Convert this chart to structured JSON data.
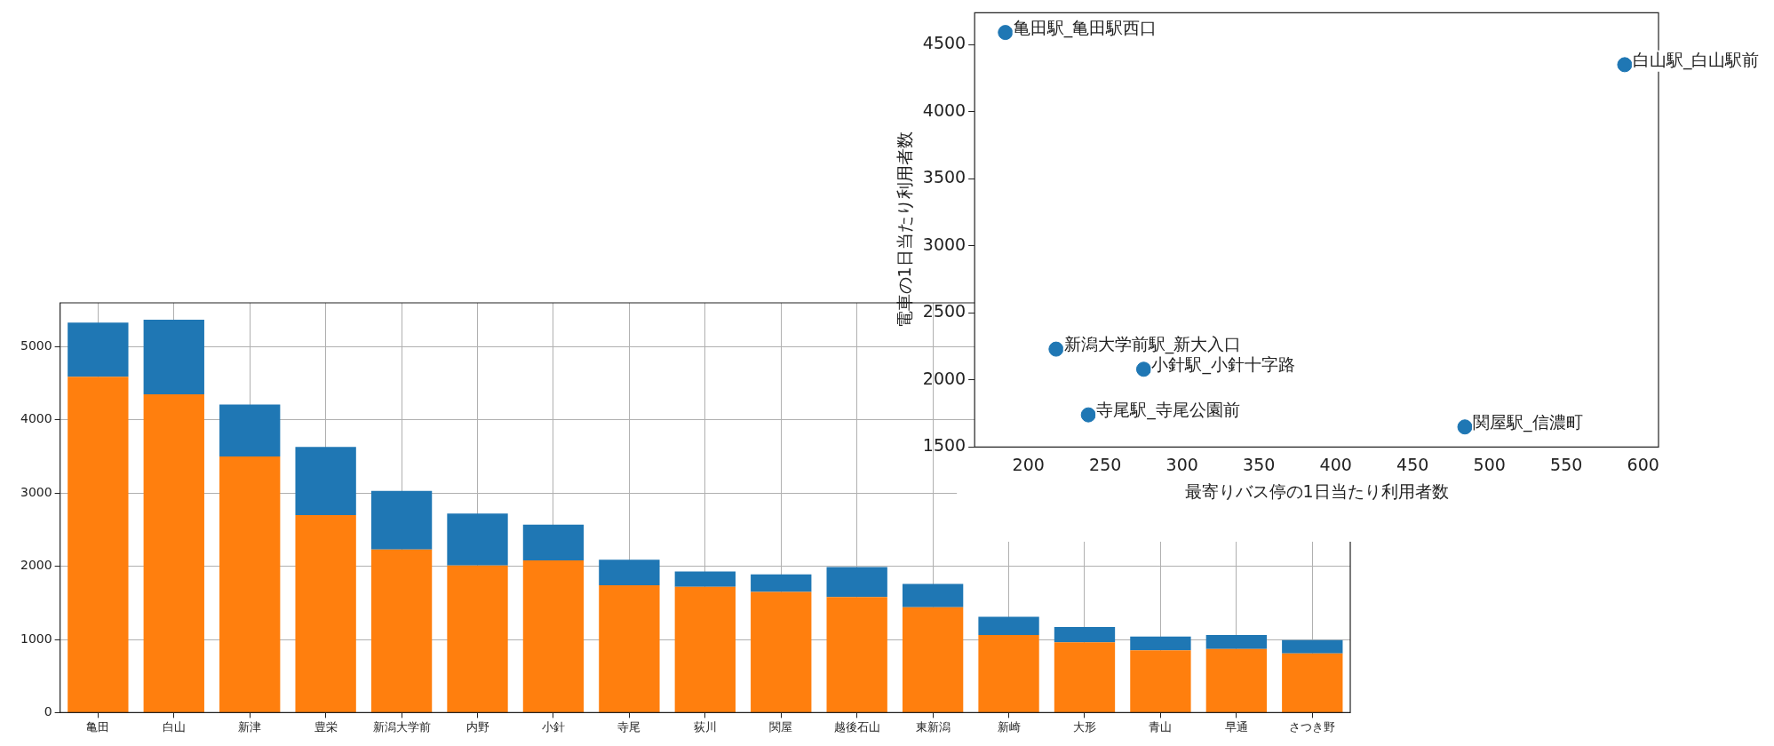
{
  "chart_data": [
    {
      "type": "bar",
      "categories": [
        "亀田",
        "白山",
        "新津",
        "豊栄",
        "新潟大学前",
        "内野",
        "小針",
        "寺尾",
        "荻川",
        "関屋",
        "越後石山",
        "東新潟",
        "新崎",
        "大形",
        "青山",
        "早通",
        "さつき野"
      ],
      "stacked": true,
      "series": [
        {
          "color": "#ff7f0e",
          "values": [
            4590,
            4350,
            3500,
            2700,
            2230,
            2010,
            2080,
            1740,
            1720,
            1650,
            1580,
            1440,
            1060,
            960,
            850,
            870,
            810
          ]
        },
        {
          "color": "#1f77b4",
          "values": [
            740,
            1020,
            710,
            930,
            800,
            710,
            490,
            350,
            210,
            240,
            410,
            320,
            250,
            210,
            190,
            190,
            180
          ]
        }
      ],
      "ylim": [
        0,
        5600
      ],
      "yticks": [
        0,
        1000,
        2000,
        3000,
        4000,
        5000
      ],
      "grid": true,
      "legend": false
    },
    {
      "type": "scatter",
      "xlabel": "最寄りバス停の1日当たり利用者数",
      "ylabel": "電車の1日当たり利用者数",
      "x": [
        185,
        588,
        218,
        275,
        239,
        484
      ],
      "values": [
        4590,
        4350,
        2230,
        2080,
        1740,
        1650
      ],
      "color": "#1f77b4",
      "marker": "circle",
      "xlim": [
        165,
        610
      ],
      "xticks": [
        200,
        250,
        300,
        350,
        400,
        450,
        500,
        550,
        600
      ],
      "ylim": [
        1500,
        4737
      ],
      "yticks": [
        1500,
        2000,
        2500,
        3000,
        3500,
        4000,
        4500
      ],
      "grid": false,
      "legend": false,
      "annotations": [
        {
          "text": "亀田駅_亀田駅西口",
          "x": 185,
          "y": 4590
        },
        {
          "text": "白山駅_白山駅前",
          "x": 588,
          "y": 4350
        },
        {
          "text": "新潟大学前駅_新大入口",
          "x": 218,
          "y": 2230
        },
        {
          "text": "小針駅_小針十字路",
          "x": 275,
          "y": 2080
        },
        {
          "text": "寺尾駅_寺尾公園前",
          "x": 239,
          "y": 1740
        },
        {
          "text": "関屋駅_信濃町",
          "x": 484,
          "y": 1650
        }
      ]
    }
  ]
}
